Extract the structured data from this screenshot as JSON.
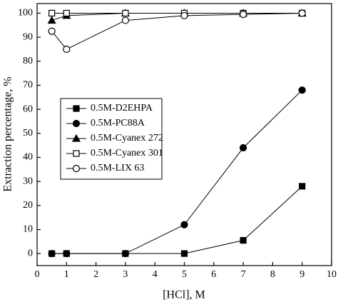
{
  "chart_data": {
    "type": "line",
    "x_label": "[HCl], M",
    "y_label": "Extraction percentage, %",
    "x": [
      0.5,
      1,
      3,
      5,
      7,
      9
    ],
    "series": [
      {
        "name": "0.5M-D2EHPA",
        "color": "#000000",
        "marker": "square",
        "filled": true,
        "values": [
          0,
          0,
          0,
          0,
          5.5,
          28
        ]
      },
      {
        "name": "0.5M-PC88A",
        "color": "#000000",
        "marker": "circle",
        "filled": true,
        "values": [
          0,
          0,
          0,
          12,
          44,
          68
        ]
      },
      {
        "name": "0.5M-Cyanex 272",
        "color": "#000000",
        "marker": "triangle",
        "filled": true,
        "values": [
          97,
          99,
          100,
          100,
          100,
          100
        ]
      },
      {
        "name": "0.5M-Cyanex 301",
        "color": "#000000",
        "marker": "square",
        "filled": false,
        "values": [
          100,
          100,
          100,
          100,
          100,
          100
        ]
      },
      {
        "name": "0.5M-LIX 63",
        "color": "#000000",
        "marker": "circle",
        "filled": false,
        "values": [
          92.5,
          85,
          97,
          99,
          99.5,
          100
        ]
      }
    ],
    "xlim": [
      0,
      10
    ],
    "xticks": [
      0,
      1,
      2,
      3,
      4,
      5,
      6,
      7,
      8,
      9,
      10
    ],
    "ylim": [
      -5,
      104
    ],
    "yticks": [
      0,
      10,
      20,
      30,
      40,
      50,
      60,
      70,
      80,
      90,
      100
    ],
    "grid": false,
    "legend": "left"
  }
}
